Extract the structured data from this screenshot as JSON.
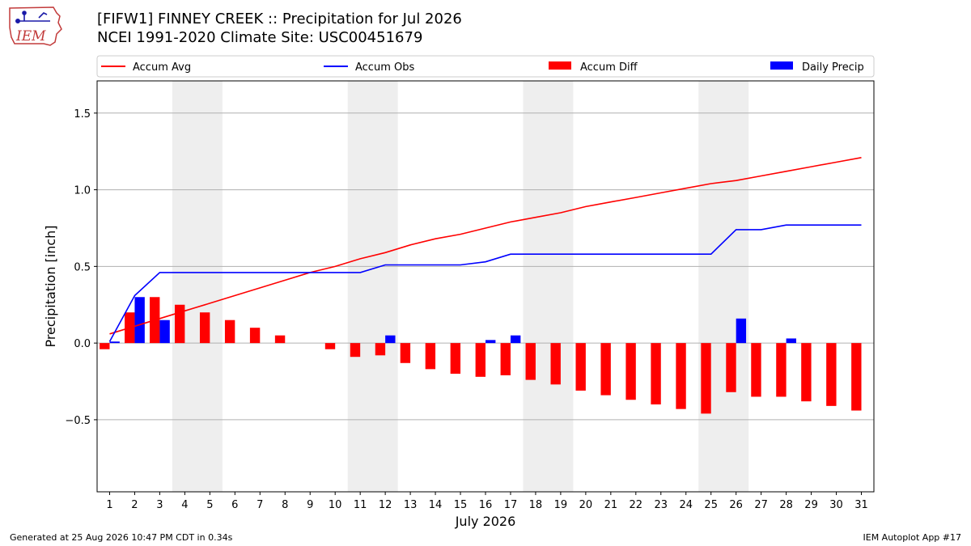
{
  "header": {
    "title_line1": "[FIFW1] FINNEY CREEK :: Precipitation for Jul 2026",
    "title_line2": "NCEI 1991-2020 Climate Site: USC00451679",
    "logo_text": "IEM"
  },
  "footer": {
    "left": "Generated at 25 Aug 2026 10:47 PM CDT in 0.34s",
    "right": "IEM Autoplot App #17"
  },
  "colors": {
    "accum_avg": "#ff0000",
    "accum_obs": "#0000ff",
    "accum_diff": "#ff0000",
    "daily_precip": "#0000ff",
    "weekend_shade": "#eeeeee",
    "grid": "#b0b0b0"
  },
  "chart_data": {
    "type": "bar",
    "xlabel": "July 2026",
    "ylabel": "Precipitation [inch]",
    "ylim": [
      -0.97,
      1.71
    ],
    "xlim": [
      0.5,
      31.5
    ],
    "yticks": [
      -0.5,
      0.0,
      0.5,
      1.0,
      1.5
    ],
    "ytick_labels": [
      "−0.5",
      "0.0",
      "0.5",
      "1.0",
      "1.5"
    ],
    "days": [
      1,
      2,
      3,
      4,
      5,
      6,
      7,
      8,
      9,
      10,
      11,
      12,
      13,
      14,
      15,
      16,
      17,
      18,
      19,
      20,
      21,
      22,
      23,
      24,
      25,
      26,
      27,
      28,
      29,
      30,
      31
    ],
    "weekend_spans": [
      [
        3.5,
        5.5
      ],
      [
        10.5,
        12.5
      ],
      [
        17.5,
        19.5
      ],
      [
        24.5,
        26.5
      ]
    ],
    "grid": "horizontal",
    "legend_position": "top",
    "series": [
      {
        "name": "Accum Avg",
        "kind": "line",
        "values": [
          0.06,
          0.11,
          0.16,
          0.21,
          0.26,
          0.31,
          0.36,
          0.41,
          0.46,
          0.5,
          0.55,
          0.59,
          0.64,
          0.68,
          0.71,
          0.75,
          0.79,
          0.82,
          0.85,
          0.89,
          0.92,
          0.95,
          0.98,
          1.01,
          1.04,
          1.06,
          1.09,
          1.12,
          1.15,
          1.18,
          1.21
        ]
      },
      {
        "name": "Accum Obs",
        "kind": "line",
        "values": [
          0.01,
          0.31,
          0.46,
          0.46,
          0.46,
          0.46,
          0.46,
          0.46,
          0.46,
          0.46,
          0.46,
          0.51,
          0.51,
          0.51,
          0.51,
          0.53,
          0.58,
          0.58,
          0.58,
          0.58,
          0.58,
          0.58,
          0.58,
          0.58,
          0.58,
          0.74,
          0.74,
          0.77,
          0.77,
          0.77,
          0.77
        ]
      },
      {
        "name": "Accum Diff",
        "kind": "bar",
        "values": [
          -0.04,
          0.2,
          0.3,
          0.25,
          0.2,
          0.15,
          0.1,
          0.05,
          0.0,
          -0.04,
          -0.09,
          -0.08,
          -0.13,
          -0.17,
          -0.2,
          -0.22,
          -0.21,
          -0.24,
          -0.27,
          -0.31,
          -0.34,
          -0.37,
          -0.4,
          -0.43,
          -0.46,
          -0.32,
          -0.35,
          -0.35,
          -0.38,
          -0.41,
          -0.44
        ]
      },
      {
        "name": "Daily Precip",
        "kind": "bar",
        "values": [
          0.01,
          0.3,
          0.15,
          0,
          0,
          0,
          0,
          0,
          0,
          0,
          0,
          0.05,
          0,
          0,
          0,
          0.02,
          0.05,
          0,
          0,
          0,
          0,
          0,
          0,
          0,
          0,
          0.16,
          0,
          0.03,
          0,
          0,
          0
        ]
      }
    ]
  }
}
